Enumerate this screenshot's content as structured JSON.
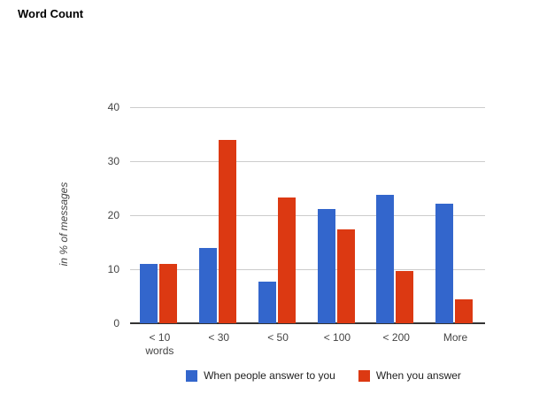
{
  "chart_data": {
    "type": "bar",
    "title": "Word Count",
    "categories": [
      "< 10 words",
      "< 30",
      "< 50",
      "< 100",
      "< 200",
      "More"
    ],
    "series": [
      {
        "name": "When people answer to you",
        "color": "#3366cc",
        "values": [
          11,
          14,
          7.7,
          21.2,
          23.8,
          22.2
        ]
      },
      {
        "name": "When you answer",
        "color": "#dc3912",
        "values": [
          11,
          34,
          23.2,
          17.4,
          9.7,
          4.4
        ]
      }
    ],
    "xlabel": "",
    "ylabel": "in % of messages",
    "ylim": [
      0,
      40
    ],
    "yticks": [
      0,
      10,
      20,
      30,
      40
    ],
    "grid": true,
    "legend_position": "bottom",
    "colors": {
      "gridline": "#cccccc",
      "axis_line": "#333333",
      "tick_text": "#444444",
      "title_text": "#000000",
      "legend_text": "#222222",
      "background": "#ffffff"
    }
  }
}
